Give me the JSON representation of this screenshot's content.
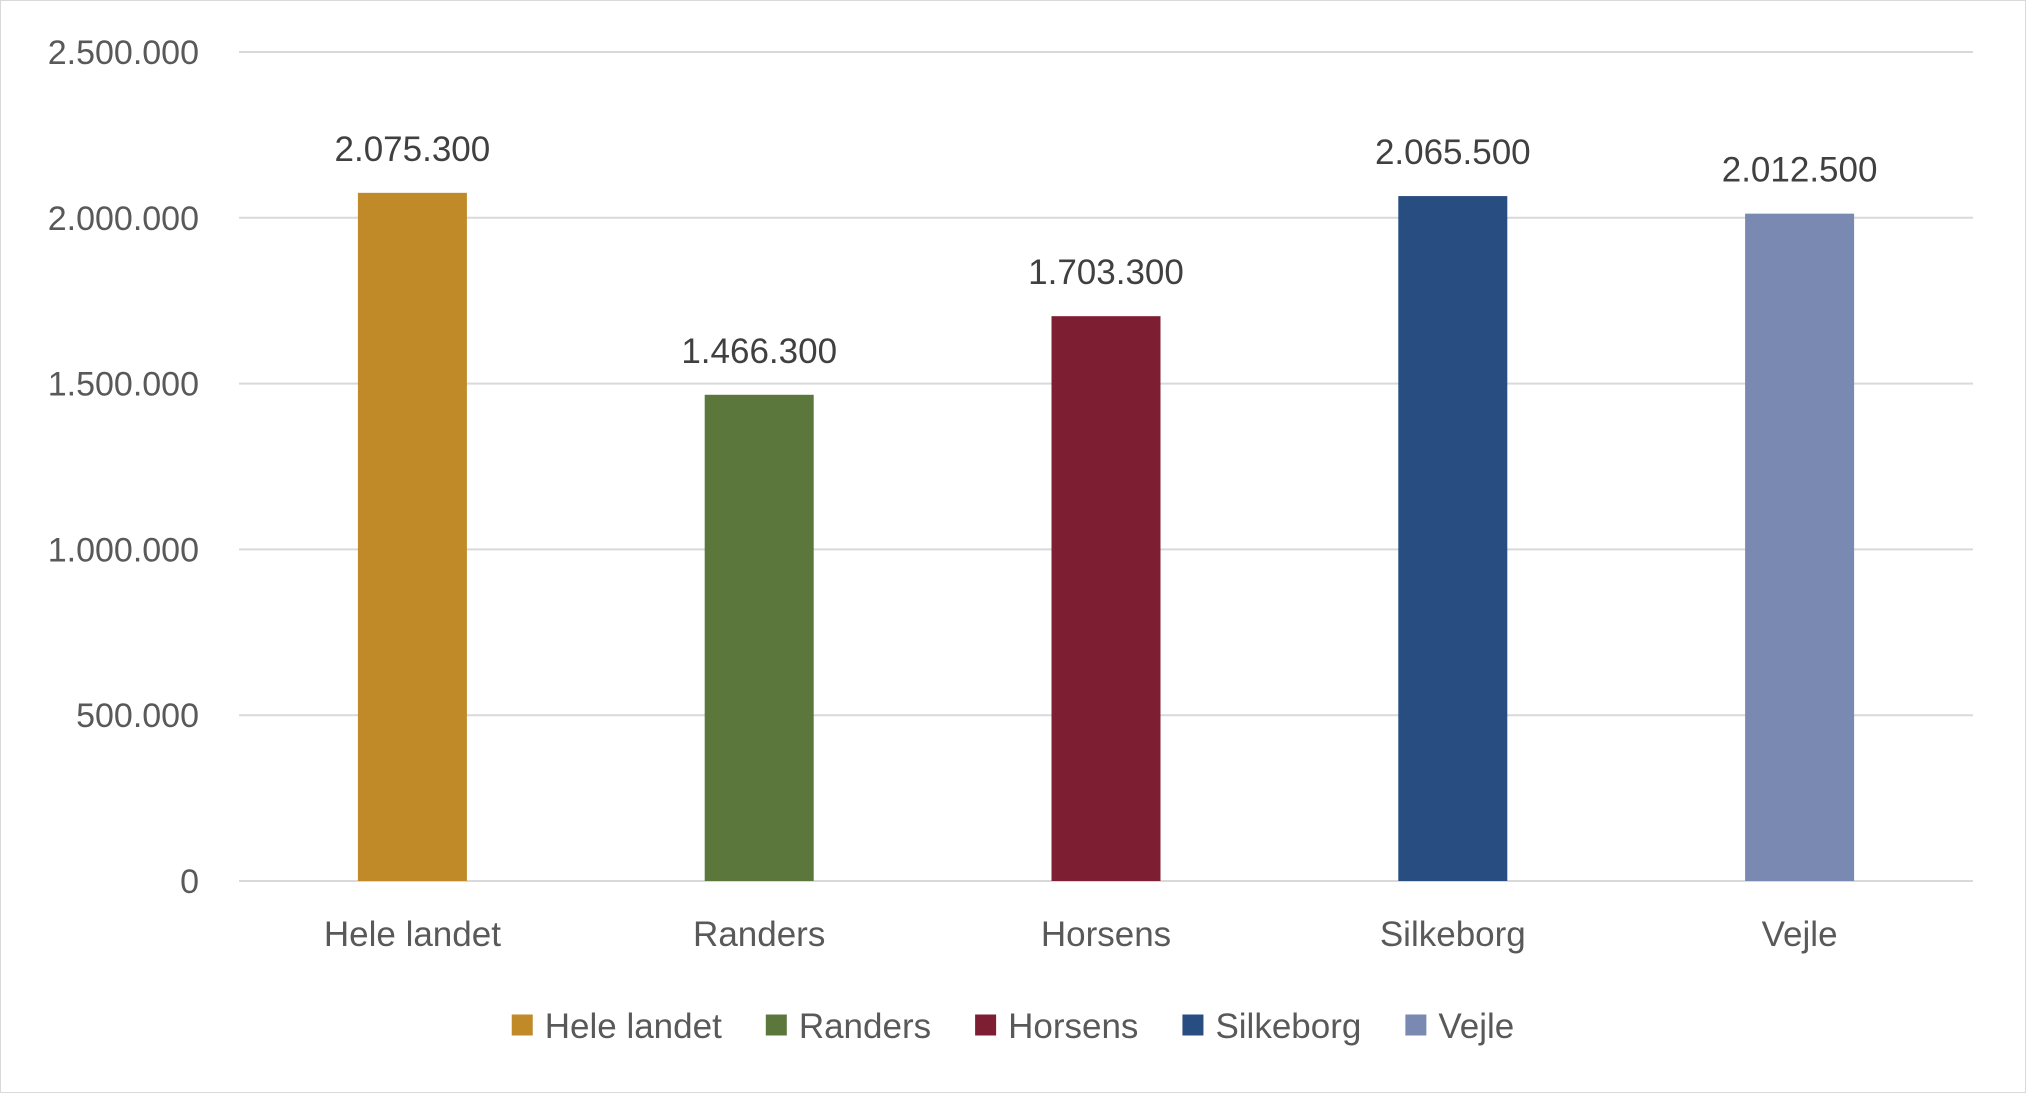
{
  "chart_data": {
    "type": "bar",
    "categories": [
      "Hele landet",
      "Randers",
      "Horsens",
      "Silkeborg",
      "Vejle"
    ],
    "values": [
      2075300,
      1466300,
      1703300,
      2065500,
      2012500
    ],
    "data_labels": [
      "2.075.300",
      "1.466.300",
      "1.703.300",
      "2.065.500",
      "2.012.500"
    ],
    "colors": [
      "#C08A28",
      "#5B773C",
      "#7D1E33",
      "#284D80",
      "#7A89B2"
    ],
    "yticks": [
      0,
      500000,
      1000000,
      1500000,
      2000000,
      2500000
    ],
    "ytick_labels": [
      "0",
      "500.000",
      "1.000.000",
      "1.500.000",
      "2.000.000",
      "2.500.000"
    ],
    "ylim": [
      0,
      2500000
    ],
    "grid": true,
    "legend": {
      "placement": "bottom",
      "entries": [
        "Hele landet",
        "Randers",
        "Horsens",
        "Silkeborg",
        "Vejle"
      ]
    },
    "title": "",
    "xlabel": "",
    "ylabel": ""
  }
}
